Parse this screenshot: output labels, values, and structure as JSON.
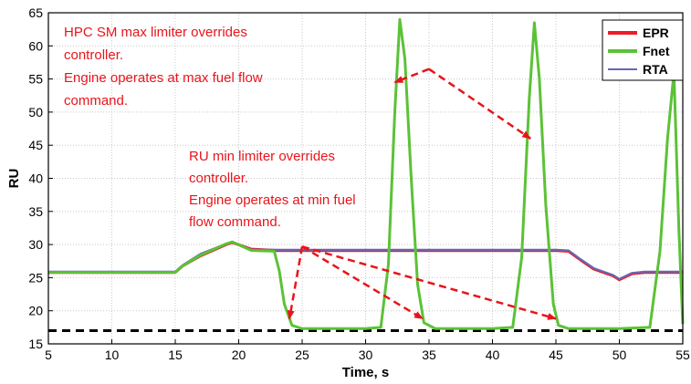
{
  "chart_data": {
    "type": "line",
    "xlabel": "Time, s",
    "ylabel": "RU",
    "xlim": [
      5,
      55
    ],
    "ylim": [
      15,
      65
    ],
    "xticks": [
      5,
      10,
      15,
      20,
      25,
      30,
      35,
      40,
      45,
      50,
      55
    ],
    "yticks": [
      15,
      20,
      25,
      30,
      35,
      40,
      45,
      50,
      55,
      60,
      65
    ],
    "grid": true,
    "legend_position": "top-right",
    "series": [
      {
        "name": "EPR",
        "color": "#ee1c25",
        "x": [
          5,
          10,
          15,
          15.6,
          17,
          19,
          19.5,
          21,
          23,
          25,
          30,
          35,
          40,
          45,
          46,
          47,
          48,
          49.5,
          50,
          51,
          52,
          55
        ],
        "y": [
          25.8,
          25.8,
          25.8,
          26.8,
          28.3,
          30.0,
          30.3,
          29.3,
          29.1,
          29.1,
          29.1,
          29.1,
          29.1,
          29.1,
          29.0,
          27.6,
          26.3,
          25.3,
          24.7,
          25.6,
          25.8,
          25.8
        ]
      },
      {
        "name": "Fnet",
        "color": "#5bc236",
        "x": [
          5,
          10,
          15,
          15.6,
          17,
          19,
          19.5,
          21,
          22.8,
          23.2,
          23.6,
          24.2,
          25,
          30,
          31.2,
          31.8,
          32.3,
          32.7,
          33.1,
          33.6,
          34.1,
          34.6,
          35.5,
          40,
          41.6,
          42.3,
          42.9,
          43.3,
          43.7,
          44.2,
          44.8,
          45.2,
          46,
          50,
          52.4,
          53.2,
          53.8,
          54.3,
          54.7,
          55
        ],
        "y": [
          25.8,
          25.8,
          25.8,
          26.8,
          28.4,
          30.1,
          30.4,
          29.1,
          29.0,
          26.0,
          21.0,
          17.8,
          17.3,
          17.3,
          17.5,
          27.0,
          50.0,
          64.0,
          58.0,
          40.0,
          24.0,
          18.2,
          17.3,
          17.3,
          17.5,
          28.0,
          52.0,
          63.5,
          55.0,
          36.0,
          21.0,
          17.8,
          17.3,
          17.3,
          17.5,
          29.0,
          46.0,
          56.0,
          32.0,
          18.0
        ]
      },
      {
        "name": "RTA",
        "color": "#6666b4",
        "x": [
          5,
          10,
          15,
          15.6,
          17,
          19,
          19.5,
          21,
          23,
          25,
          30,
          35,
          40,
          45,
          46,
          47,
          48,
          49.5,
          50,
          51,
          52,
          55
        ],
        "y": [
          25.9,
          25.9,
          25.9,
          26.9,
          28.6,
          30.1,
          30.4,
          29.2,
          29.2,
          29.2,
          29.2,
          29.2,
          29.2,
          29.2,
          29.1,
          27.7,
          26.4,
          25.4,
          24.8,
          25.7,
          25.9,
          25.9
        ]
      }
    ],
    "reference_line": {
      "y": 17,
      "color": "#000000",
      "style": "dashed"
    },
    "annotations": [
      {
        "lines": [
          "HPC SM max limiter overrides",
          "controller.",
          "Engine operates at max fuel flow",
          "command."
        ],
        "color": "#e8141b"
      },
      {
        "lines": [
          "RU min limiter overrides",
          "controller.",
          "Engine operates at min fuel",
          "flow command."
        ],
        "color": "#e8141b"
      }
    ],
    "arrows": [
      {
        "from": [
          35,
          56.5
        ],
        "to": [
          32.3,
          54.5
        ]
      },
      {
        "from": [
          35,
          56.5
        ],
        "to": [
          43.0,
          46.0
        ]
      },
      {
        "from": [
          25,
          29.7
        ],
        "to": [
          24.0,
          18.8
        ]
      },
      {
        "from": [
          25,
          29.7
        ],
        "to": [
          34.5,
          18.8
        ]
      },
      {
        "from": [
          25,
          29.7
        ],
        "to": [
          45.0,
          18.8
        ]
      }
    ]
  }
}
